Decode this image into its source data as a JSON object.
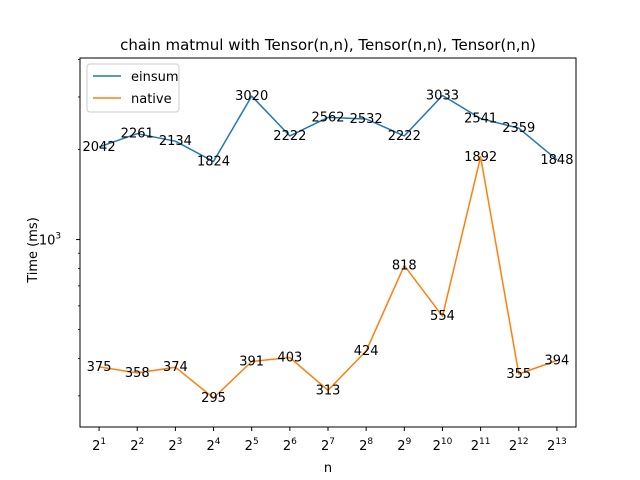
{
  "chart_data": {
    "type": "line",
    "title": "chain matmul with Tensor(n,n), Tensor(n,n), Tensor(n,n)",
    "xlabel": "n",
    "ylabel": "Time (ms)",
    "yscale": "log",
    "ylim": [
      236,
      4050
    ],
    "yticks": [
      {
        "value": 1000,
        "base": "10",
        "exp": "3"
      }
    ],
    "categories": [
      {
        "base": "2",
        "exp": "1"
      },
      {
        "base": "2",
        "exp": "2"
      },
      {
        "base": "2",
        "exp": "3"
      },
      {
        "base": "2",
        "exp": "4"
      },
      {
        "base": "2",
        "exp": "5"
      },
      {
        "base": "2",
        "exp": "6"
      },
      {
        "base": "2",
        "exp": "7"
      },
      {
        "base": "2",
        "exp": "8"
      },
      {
        "base": "2",
        "exp": "9"
      },
      {
        "base": "2",
        "exp": "10"
      },
      {
        "base": "2",
        "exp": "11"
      },
      {
        "base": "2",
        "exp": "12"
      },
      {
        "base": "2",
        "exp": "13"
      }
    ],
    "series": [
      {
        "name": "einsum",
        "color": "#1f77b4",
        "values": [
          2042,
          2261,
          2134,
          1824,
          3020,
          2222,
          2562,
          2532,
          2222,
          3033,
          2541,
          2359,
          1848
        ]
      },
      {
        "name": "native",
        "color": "#ff7f0e",
        "values": [
          375,
          358,
          374,
          295,
          391,
          403,
          313,
          424,
          818,
          554,
          1892,
          355,
          394
        ]
      }
    ],
    "legend": "top-left",
    "grid": false
  }
}
